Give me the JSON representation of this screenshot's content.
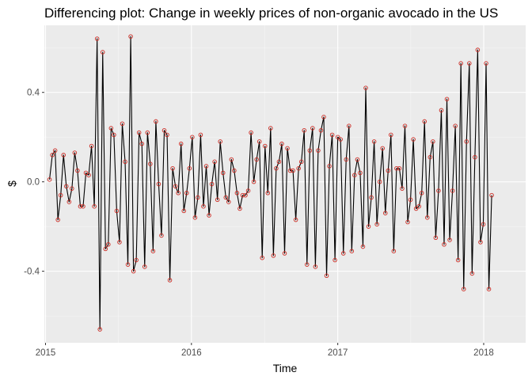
{
  "chart_data": {
    "type": "line",
    "title": "Differencing plot: Change in weekly prices of non-organic avocado in the US",
    "xlabel": "Time",
    "ylabel": "$",
    "xlim": [
      "2014-12-29",
      "2018-04-16"
    ],
    "ylim": [
      -0.72,
      0.7
    ],
    "x_ticks": [
      {
        "label": "2015",
        "date": "2015-01-01"
      },
      {
        "label": "2016",
        "date": "2016-01-01"
      },
      {
        "label": "2017",
        "date": "2017-01-01"
      },
      {
        "label": "2018",
        "date": "2018-01-01"
      }
    ],
    "y_ticks": [
      {
        "label": "-0.4",
        "value": -0.4
      },
      {
        "label": "0.0",
        "value": 0.0
      },
      {
        "label": "0.4",
        "value": 0.4
      }
    ],
    "grid": true,
    "colors": {
      "panel": "#ebebeb",
      "grid": "#ffffff",
      "line": "#000000",
      "point": "#cc2a22"
    },
    "series": [
      {
        "start_date": "2015-01-11",
        "interval_days": 7,
        "values": [
          0.01,
          0.12,
          0.14,
          -0.17,
          -0.06,
          0.12,
          -0.02,
          -0.09,
          -0.03,
          0.13,
          0.05,
          -0.11,
          -0.11,
          0.04,
          0.03,
          0.16,
          -0.11,
          0.64,
          -0.66,
          0.58,
          -0.3,
          -0.28,
          0.24,
          0.21,
          -0.13,
          -0.27,
          0.26,
          0.09,
          -0.37,
          0.65,
          -0.4,
          -0.35,
          0.22,
          0.17,
          -0.38,
          0.22,
          0.08,
          -0.31,
          0.27,
          -0.01,
          -0.24,
          0.23,
          0.21,
          -0.44,
          0.06,
          -0.02,
          -0.05,
          0.17,
          -0.13,
          -0.05,
          0.06,
          0.2,
          -0.16,
          -0.07,
          0.21,
          -0.11,
          0.07,
          -0.15,
          -0.01,
          0.09,
          -0.08,
          0.18,
          0.04,
          -0.07,
          -0.09,
          0.1,
          0.05,
          -0.05,
          -0.12,
          -0.06,
          -0.06,
          -0.04,
          0.22,
          0.0,
          0.1,
          0.18,
          -0.34,
          0.16,
          -0.05,
          0.24,
          -0.33,
          0.06,
          0.09,
          0.17,
          -0.32,
          0.15,
          0.05,
          0.05,
          -0.17,
          0.06,
          0.09,
          0.23,
          -0.37,
          0.14,
          0.24,
          -0.38,
          0.14,
          0.23,
          0.29,
          -0.42,
          0.07,
          0.21,
          -0.35,
          0.2,
          0.19,
          -0.32,
          0.1,
          0.25,
          -0.31,
          0.03,
          0.1,
          0.04,
          -0.29,
          0.42,
          -0.2,
          -0.07,
          0.18,
          -0.19,
          0.0,
          0.15,
          -0.14,
          0.05,
          0.21,
          -0.31,
          0.06,
          0.06,
          -0.03,
          0.25,
          -0.18,
          -0.08,
          0.19,
          -0.12,
          -0.11,
          -0.05,
          0.27,
          -0.16,
          0.11,
          0.18,
          -0.25,
          -0.04,
          0.32,
          -0.28,
          0.37,
          -0.26,
          -0.04,
          0.25,
          -0.35,
          0.53,
          -0.48,
          0.18,
          0.53,
          -0.41,
          0.11,
          0.59,
          -0.27,
          -0.19,
          0.53,
          -0.48,
          -0.06
        ]
      }
    ]
  }
}
